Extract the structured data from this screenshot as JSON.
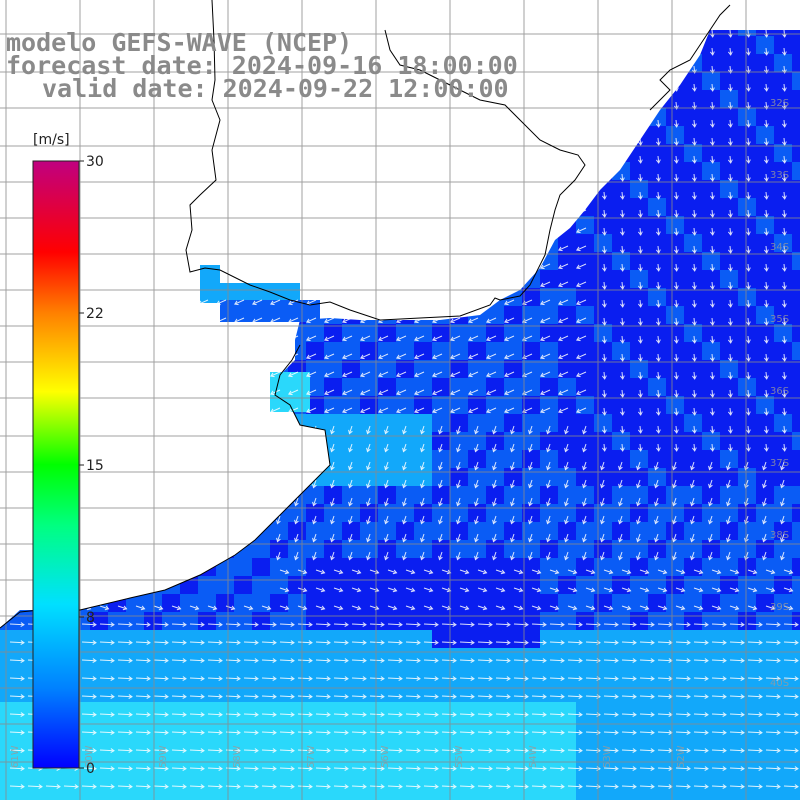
{
  "title": {
    "model": "modelo GEFS-WAVE (NCEP)",
    "forecast": "forecast date: 2024-09-16 18:00:00",
    "valid": "valid date: 2024-09-22 12:00:00"
  },
  "colorbar": {
    "units": "[m/s]",
    "ticks": [
      "30",
      "22",
      "15",
      "8",
      "0"
    ],
    "colors": [
      "#0000ff",
      "#0080ff",
      "#00e0ff",
      "#00ff80",
      "#00ff00",
      "#ffff00",
      "#ff8000",
      "#ff0000",
      "#c00080"
    ]
  },
  "graticule": {
    "lat_labels": [
      "32S",
      "33S",
      "34S",
      "35S",
      "36S",
      "37S",
      "38S",
      "39S",
      "40S"
    ],
    "lon_labels": [
      "61W",
      "60W",
      "59W",
      "58W",
      "57W",
      "56W",
      "55W",
      "54W",
      "53W",
      "52W"
    ]
  },
  "colors": {
    "deep_blue": "#0a1ef0",
    "mid_blue": "#0a5cf5",
    "light_blue": "#12a8fa",
    "cyan": "#2ad8fb",
    "land": "#ffffff",
    "grid": "#8a8a8a"
  }
}
